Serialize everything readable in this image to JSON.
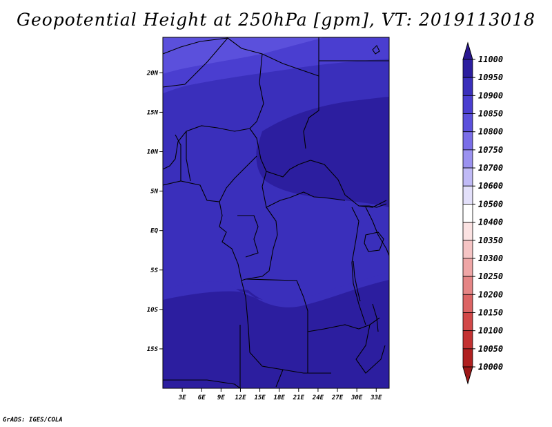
{
  "title": "Geopotential Height at 250hPa [gpm], VT: 2019113018",
  "footer": "GrADS: IGES/COLA",
  "map": {
    "lat_ticks": [
      "20N",
      "15N",
      "10N",
      "5N",
      "EQ",
      "5S",
      "10S",
      "15S"
    ],
    "lon_ticks": [
      "3E",
      "6E",
      "9E",
      "12E",
      "15E",
      "18E",
      "21E",
      "24E",
      "27E",
      "30E",
      "33E"
    ],
    "lat_range": [
      -20,
      24.5
    ],
    "lon_range": [
      0,
      35
    ]
  },
  "colorbar": {
    "labels": [
      "11000",
      "10950",
      "10900",
      "10850",
      "10800",
      "10750",
      "10700",
      "10600",
      "10500",
      "10400",
      "10350",
      "10300",
      "10250",
      "10200",
      "10150",
      "10100",
      "10050",
      "10000"
    ],
    "colors": [
      "#2a1891",
      "#2c1e9f",
      "#3a2fbb",
      "#4a3ed0",
      "#5b50dc",
      "#7a6ee8",
      "#9b92f0",
      "#c0baf6",
      "#e3e0fa",
      "#ffffff",
      "#fbe2e2",
      "#f5c4c4",
      "#efa6a6",
      "#e58585",
      "#dc6464",
      "#d24848",
      "#c43232",
      "#b02020",
      "#9e1818"
    ]
  },
  "colors": {
    "deep": "#2c1e9f",
    "mid": "#3a2fbb",
    "light": "#4a3ed0",
    "lightest": "#5b50dc"
  }
}
